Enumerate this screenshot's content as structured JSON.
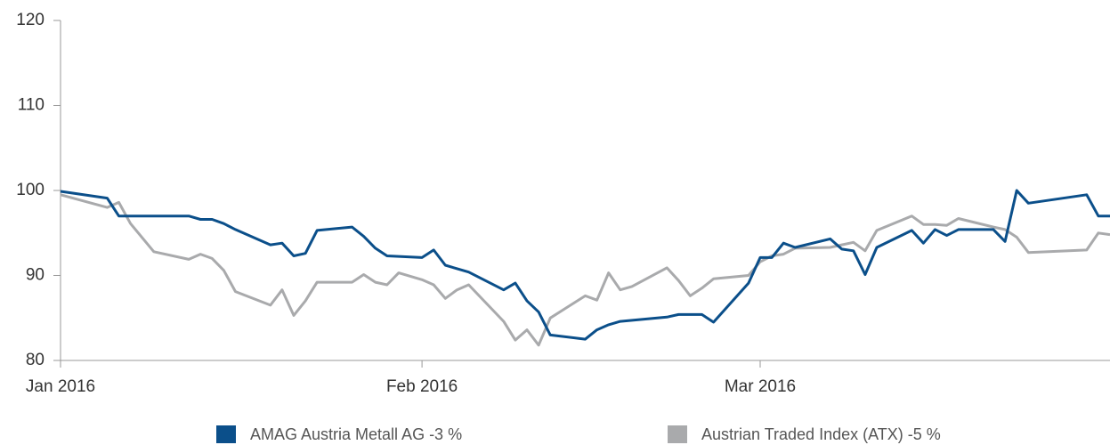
{
  "chart_data": {
    "type": "line",
    "xlim": [
      0,
      90
    ],
    "xticks": [
      {
        "value": 0,
        "label": "Jan 2016"
      },
      {
        "value": 31,
        "label": "Feb 2016"
      },
      {
        "value": 60,
        "label": "Mar 2016"
      }
    ],
    "ylim": [
      80,
      120
    ],
    "yticks": [
      80,
      90,
      100,
      110,
      120
    ],
    "grid": false,
    "legend": "bottom",
    "series": [
      {
        "name": "AMAG Austria Metall AG -3 %",
        "color": "#0b4f8a",
        "x": [
          0,
          4,
          5,
          11,
          12,
          13,
          14,
          15,
          18,
          19,
          20,
          21,
          22,
          25,
          26,
          27,
          28,
          31,
          32,
          33,
          35,
          38,
          39,
          40,
          41,
          42,
          45,
          46,
          47,
          48,
          52,
          53,
          55,
          56,
          59,
          60,
          61,
          62,
          63,
          66,
          67,
          68,
          69,
          70,
          73,
          74,
          75,
          76,
          77,
          80,
          81,
          82,
          83,
          88,
          89,
          90
        ],
        "values": [
          99.9,
          99.1,
          97.0,
          97.0,
          96.6,
          96.6,
          96.1,
          95.4,
          93.6,
          93.8,
          92.3,
          92.6,
          95.3,
          95.7,
          94.6,
          93.2,
          92.3,
          92.1,
          93.0,
          91.2,
          90.4,
          88.3,
          89.1,
          87.0,
          85.7,
          83.0,
          82.5,
          83.6,
          84.2,
          84.6,
          85.1,
          85.4,
          85.4,
          84.5,
          89.1,
          92.1,
          92.1,
          93.8,
          93.3,
          94.3,
          93.1,
          92.9,
          90.1,
          93.3,
          95.3,
          93.8,
          95.4,
          94.7,
          95.4,
          95.4,
          94.0,
          100.0,
          98.5,
          99.5,
          97.0,
          97.0
        ]
      },
      {
        "name": "Austrian Traded Index (ATX) -5 %",
        "color": "#a9aaac",
        "x": [
          0,
          4,
          5,
          6,
          8,
          11,
          12,
          13,
          14,
          15,
          18,
          19,
          20,
          21,
          22,
          25,
          26,
          27,
          28,
          29,
          31,
          32,
          33,
          34,
          35,
          38,
          39,
          40,
          41,
          42,
          45,
          46,
          47,
          48,
          49,
          52,
          53,
          54,
          55,
          56,
          59,
          60,
          61,
          62,
          63,
          66,
          67,
          68,
          69,
          70,
          73,
          74,
          75,
          76,
          77,
          80,
          81,
          82,
          83,
          88,
          89,
          90
        ],
        "values": [
          99.5,
          98.0,
          98.6,
          96.1,
          92.8,
          91.9,
          92.5,
          92.0,
          90.6,
          88.1,
          86.5,
          88.3,
          85.3,
          87.0,
          89.2,
          89.2,
          90.1,
          89.2,
          88.9,
          90.3,
          89.5,
          88.9,
          87.3,
          88.3,
          88.9,
          84.6,
          82.4,
          83.6,
          81.8,
          85.0,
          87.6,
          87.1,
          90.3,
          88.3,
          88.7,
          90.9,
          89.4,
          87.6,
          88.5,
          89.6,
          90.0,
          91.6,
          92.3,
          92.5,
          93.2,
          93.3,
          93.6,
          93.9,
          92.9,
          95.3,
          97.0,
          96.0,
          96.0,
          95.9,
          96.7,
          95.7,
          95.4,
          94.5,
          92.7,
          93.0,
          95.0,
          94.8
        ]
      }
    ]
  }
}
